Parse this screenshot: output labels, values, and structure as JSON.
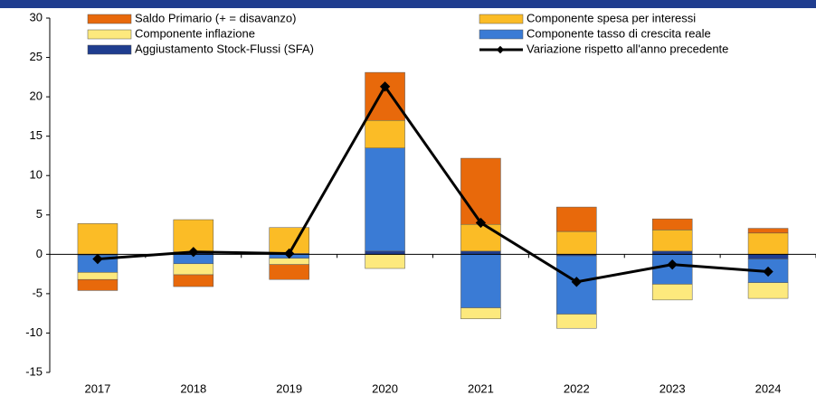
{
  "chart_data": {
    "type": "stacked_bar_line",
    "categories": [
      "2017",
      "2018",
      "2019",
      "2020",
      "2021",
      "2022",
      "2023",
      "2024"
    ],
    "series": [
      {
        "name": "Saldo Primario (+ = disavanzo)",
        "color": "#e8690b",
        "values": [
          -1.4,
          -1.5,
          -1.9,
          6.1,
          8.4,
          3.1,
          1.4,
          0.6
        ]
      },
      {
        "name": "Componente spesa per interessi",
        "color": "#fbbc26",
        "values": [
          3.9,
          4.1,
          3.3,
          3.5,
          3.4,
          2.9,
          2.7,
          2.7
        ]
      },
      {
        "name": "Componente inflazione",
        "color": "#fde97d",
        "values": [
          -0.9,
          -1.4,
          -0.8,
          -1.8,
          -1.4,
          -1.8,
          -2.0,
          -2.0
        ]
      },
      {
        "name": "Componente tasso di crescita reale",
        "color": "#3a7bd5",
        "values": [
          -2.2,
          -1.2,
          -0.5,
          13.1,
          -6.8,
          -7.4,
          -3.8,
          -3.0
        ]
      },
      {
        "name": "Aggiustamento Stock-Flussi (SFA)",
        "color": "#1f3d8f",
        "values": [
          -0.1,
          0.3,
          0.1,
          0.4,
          0.4,
          -0.2,
          0.4,
          -0.6
        ]
      },
      {
        "name": "Variazione rispetto all'anno precedente",
        "color": "#000000",
        "type": "line",
        "values": [
          -0.6,
          0.3,
          0.1,
          21.3,
          4.0,
          -3.5,
          -1.3,
          -2.2
        ]
      }
    ],
    "ylim": [
      -15,
      30
    ],
    "yticks": [
      -15,
      -10,
      -5,
      0,
      5,
      10,
      15,
      20,
      25,
      30
    ]
  }
}
